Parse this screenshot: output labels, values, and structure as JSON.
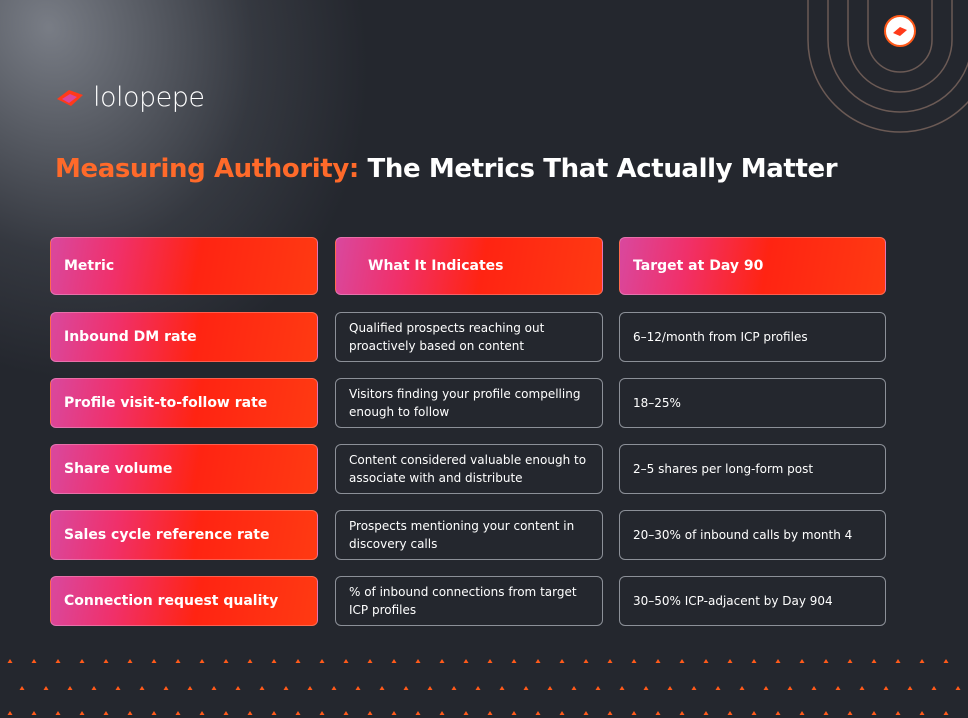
{
  "logo": {
    "text": "lolopepe"
  },
  "header": {
    "title_accent": "Measuring Authority:",
    "title_rest": "The Metrics That Actually Matter"
  },
  "table": {
    "columns": [
      "Metric",
      "What It Indicates",
      "Target at Day 90"
    ],
    "rows": [
      [
        "Inbound DM rate",
        "Qualified prospects reaching out proactively based on content",
        "6–12/month from ICP profiles"
      ],
      [
        "Profile visit-to-follow rate",
        "Visitors finding your profile compelling enough to follow",
        "18–25%"
      ],
      [
        "Share volume",
        "Content considered valuable enough to associate with and distribute",
        "2–5 shares per long-form post"
      ],
      [
        "Sales cycle reference rate",
        "Prospects mentioning your content in discovery calls",
        "20–30% of inbound calls by month 4"
      ],
      [
        "Connection request quality",
        "% of inbound connections from target ICP profiles",
        "30–50% ICP-adjacent by Day 904"
      ]
    ]
  }
}
